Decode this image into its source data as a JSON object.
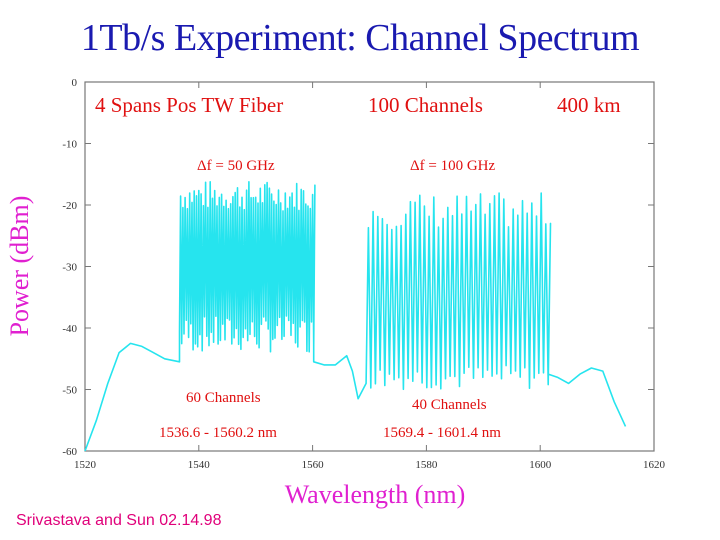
{
  "title": "1Tb/s Experiment: Channel Spectrum",
  "credit": "Srivastava and Sun 02.14.98",
  "chart_data": {
    "type": "line",
    "xlabel": "Wavelength  (nm)",
    "ylabel": "Power (dBm)",
    "xlim": [
      1520,
      1620
    ],
    "ylim": [
      -60,
      0
    ],
    "xticks": [
      "1520",
      "1540",
      "1560",
      "1580",
      "1600",
      "1620"
    ],
    "yticks": [
      "0",
      "-10",
      "-20",
      "-30",
      "-40",
      "-50",
      "-60"
    ],
    "header_annotations": [
      "4 Spans Pos TW Fiber",
      "100 Channels",
      "400 km"
    ],
    "bands": [
      {
        "spacing_label": "Δf = 50 GHz",
        "channels_label": "60 Channels",
        "range_label": "1536.6 - 1560.2 nm",
        "start_nm": 1536.6,
        "end_nm": 1560.2,
        "channel_count": 60,
        "peak_dbm_range": [
          -21,
          -16
        ],
        "valley_dbm_range": [
          -44,
          -38
        ]
      },
      {
        "spacing_label": "Δf = 100 GHz",
        "channels_label": "40 Channels",
        "range_label": "1569.4 - 1601.4 nm",
        "start_nm": 1569.4,
        "end_nm": 1601.4,
        "channel_count": 40,
        "peak_dbm_range": [
          -24,
          -18
        ],
        "valley_dbm_range": [
          -50,
          -46
        ]
      }
    ],
    "noise_floor": {
      "x": [
        1520,
        1522,
        1524,
        1526,
        1528,
        1530,
        1532,
        1534,
        1536.6,
        1560.2,
        1562,
        1564,
        1566,
        1567,
        1568,
        1569.4,
        1601.4,
        1603,
        1605,
        1607,
        1609,
        1611,
        1613,
        1615
      ],
      "y": [
        -60,
        -55,
        -49,
        -44,
        -42.5,
        -43,
        -44,
        -45,
        -45.5,
        -45.5,
        -46,
        -46,
        -44.5,
        -47,
        -51.5,
        -49,
        -47.5,
        -48,
        -49,
        -47.5,
        -46.5,
        -47,
        -52,
        -56
      ]
    }
  },
  "colors": {
    "trace": "#26e4ee",
    "title": "#1a1ab0",
    "annotation": "#e01010",
    "axis_label": "#e020d0",
    "credit": "#e0007a"
  }
}
